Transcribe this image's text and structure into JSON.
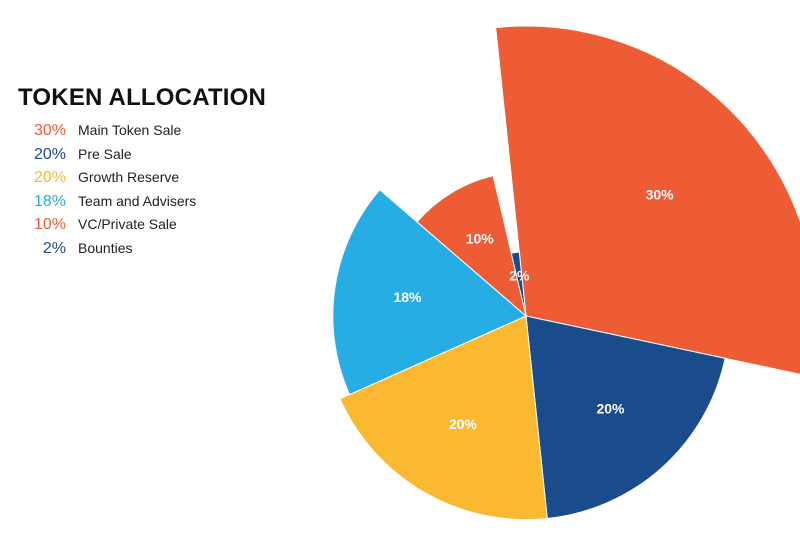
{
  "chart_data": {
    "type": "pie",
    "variant": "polar-area",
    "title": "TOKEN ALLOCATION",
    "slices": [
      {
        "label": "Main Token Sale",
        "value": 30,
        "display": "30%",
        "color": "#EE5C36"
      },
      {
        "label": "Pre Sale",
        "value": 20,
        "display": "20%",
        "color": "#1A4C8B"
      },
      {
        "label": "Growth Reserve",
        "value": 20,
        "display": "20%",
        "color": "#FBB931"
      },
      {
        "label": "Team and Advisers",
        "value": 18,
        "display": "18%",
        "color": "#26ADE4"
      },
      {
        "label": "VC/Private Sale",
        "value": 10,
        "display": "10%",
        "color": "#EE5C36"
      },
      {
        "label": "Bounties",
        "value": 2,
        "display": "2%",
        "color": "#1A4C8B"
      }
    ],
    "legend_position": "left"
  }
}
